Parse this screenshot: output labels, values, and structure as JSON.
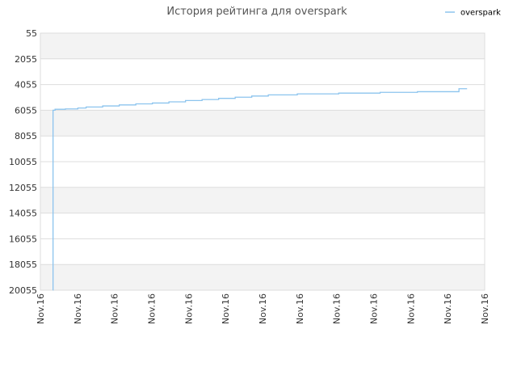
{
  "chart_data": {
    "type": "line",
    "title": "История рейтинга для overspark",
    "xlabel": "",
    "ylabel": "",
    "y_axis_inverted": true,
    "ylim": [
      55,
      20055
    ],
    "y_ticks": [
      "55",
      "2055",
      "4055",
      "6055",
      "8055",
      "10055",
      "12055",
      "14055",
      "16055",
      "18055",
      "20055"
    ],
    "x_ticks": [
      "Nov.16",
      "Nov.16",
      "Nov.16",
      "Nov.16",
      "Nov.16",
      "Nov.16",
      "Nov.16",
      "Nov.16",
      "Nov.16",
      "Nov.16",
      "Nov.16",
      "Nov.16",
      "Nov.16"
    ],
    "grid": true,
    "legend": "top-right",
    "colors": {
      "line": "#8cc4ee",
      "band": "#f3f3f3",
      "grid": "#dddddd",
      "axis_text": "#333333",
      "title_text": "#555555"
    },
    "series": [
      {
        "name": "overspark",
        "x": [
          0.0,
          0.0001,
          0.005,
          0.01,
          0.03,
          0.06,
          0.08,
          0.12,
          0.16,
          0.2,
          0.24,
          0.28,
          0.32,
          0.36,
          0.4,
          0.44,
          0.48,
          0.52,
          0.55,
          0.59,
          0.62,
          0.65,
          0.69,
          0.72,
          0.75,
          0.79,
          0.82,
          0.85,
          0.88,
          0.91,
          0.94,
          0.9748,
          0.9749,
          0.9804,
          1.0
        ],
        "ranks": [
          20055,
          6055,
          5980,
          5980,
          5950,
          5880,
          5800,
          5720,
          5640,
          5560,
          5490,
          5400,
          5300,
          5220,
          5130,
          5040,
          4950,
          4860,
          4860,
          4780,
          4780,
          4780,
          4720,
          4720,
          4720,
          4660,
          4660,
          4660,
          4610,
          4610,
          4610,
          4610,
          4610,
          4380,
          4380
        ]
      }
    ]
  }
}
